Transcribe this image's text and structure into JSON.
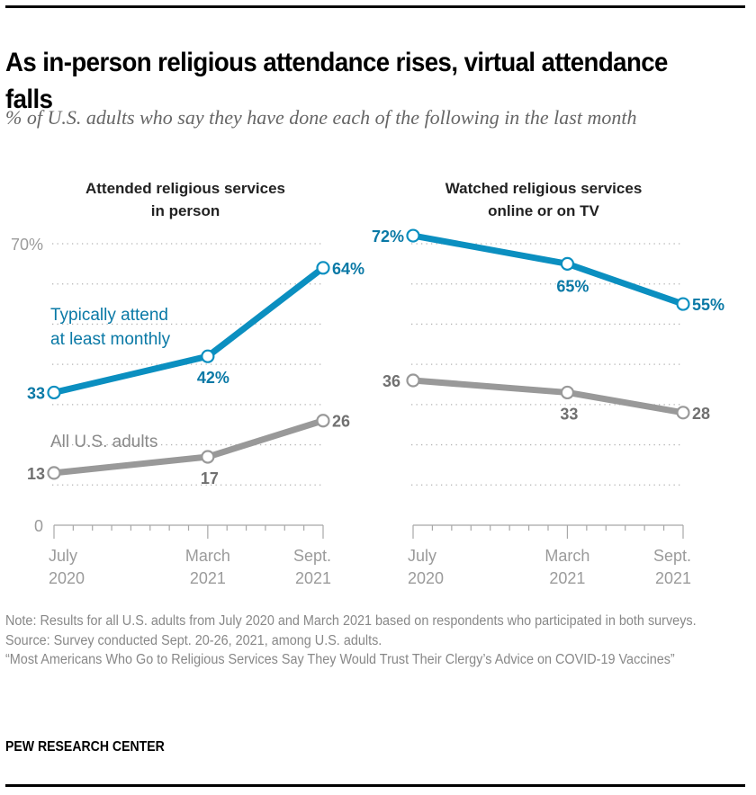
{
  "header": {
    "title": "As in-person religious attendance rises, virtual attendance falls",
    "subtitle": "% of U.S. adults who say they have done each of the following in the last month"
  },
  "colors": {
    "monthly": "#0b8fc0",
    "monthly_label": "#0a79a6",
    "all": "#999999",
    "all_label": "#707070",
    "grid": "#b3b3b3",
    "axis": "#a8a8a8"
  },
  "chart_data": [
    {
      "type": "line",
      "title": "Attended religious services in person",
      "title_lines": [
        "Attended religious services",
        "in person"
      ],
      "categories": [
        "July 2020",
        "March 2021",
        "Sept. 2021"
      ],
      "category_lines": [
        [
          "July",
          "2020"
        ],
        [
          "March",
          "2021"
        ],
        [
          "Sept.",
          "2021"
        ]
      ],
      "x_months": [
        0,
        8,
        14
      ],
      "ylim": [
        0,
        70
      ],
      "y_ticks": [
        0,
        10,
        20,
        30,
        40,
        50,
        60,
        70
      ],
      "y_tick_labels": {
        "0": "0",
        "70": "70%"
      },
      "grid": true,
      "series": [
        {
          "name": "Typically attend at least monthly",
          "label_lines": [
            "Typically attend",
            "at least monthly"
          ],
          "values": [
            33,
            42,
            64
          ],
          "data_labels": [
            "33",
            "42%",
            "64%"
          ]
        },
        {
          "name": "All U.S. adults",
          "label_lines": [
            "All U.S. adults"
          ],
          "values": [
            13,
            17,
            26
          ],
          "data_labels": [
            "13",
            "17",
            "26"
          ]
        }
      ]
    },
    {
      "type": "line",
      "title": "Watched religious services online or on TV",
      "title_lines": [
        "Watched religious services",
        "online or on TV"
      ],
      "categories": [
        "July 2020",
        "March 2021",
        "Sept. 2021"
      ],
      "category_lines": [
        [
          "July",
          "2020"
        ],
        [
          "March",
          "2021"
        ],
        [
          "Sept.",
          "2021"
        ]
      ],
      "x_months": [
        0,
        8,
        14
      ],
      "ylim": [
        0,
        70
      ],
      "y_ticks": [
        0,
        10,
        20,
        30,
        40,
        50,
        60,
        70
      ],
      "grid": true,
      "series": [
        {
          "name": "Typically attend at least monthly",
          "values": [
            72,
            65,
            55
          ],
          "data_labels": [
            "72%",
            "65%",
            "55%"
          ]
        },
        {
          "name": "All U.S. adults",
          "values": [
            36,
            33,
            28
          ],
          "data_labels": [
            "36",
            "33",
            "28"
          ]
        }
      ]
    }
  ],
  "footer": {
    "note": "Note: Results for all U.S. adults from July 2020 and March 2021 based on respondents who participated in both surveys.",
    "source": "Source: Survey conducted Sept. 20-26, 2021, among U.S. adults.",
    "report": "“Most Americans Who Go to Religious Services Say They Would Trust Their Clergy’s Advice on COVID-19 Vaccines”",
    "brand": "PEW RESEARCH CENTER"
  }
}
